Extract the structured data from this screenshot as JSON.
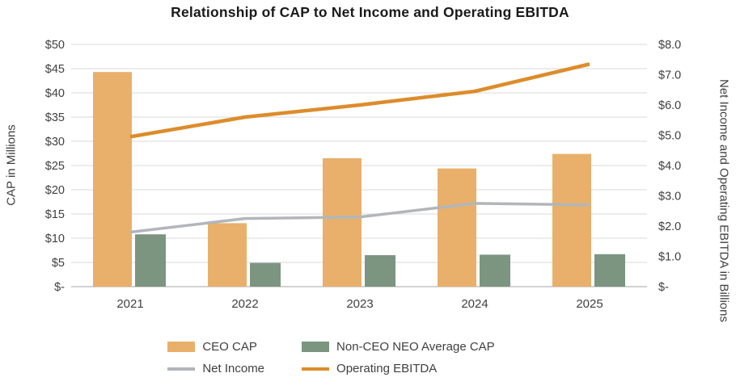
{
  "chart_data": {
    "type": "bar",
    "combo": "bar+line",
    "title": "Relationship of CAP to Net Income and Operating EBITDA",
    "categories": [
      "2021",
      "2022",
      "2023",
      "2024",
      "2025"
    ],
    "bar_series": [
      {
        "name": "CEO CAP",
        "axis": "left",
        "color": "#E8B06A",
        "values": [
          44.3,
          13.1,
          26.5,
          24.4,
          27.4
        ]
      },
      {
        "name": "Non-CEO NEO Average CAP",
        "axis": "left",
        "color": "#7C9580",
        "values": [
          10.8,
          4.9,
          6.5,
          6.6,
          6.7
        ]
      }
    ],
    "line_series": [
      {
        "name": "Net Income",
        "axis": "right",
        "color": "#B2B6BB",
        "values": [
          1.8,
          2.25,
          2.3,
          2.75,
          2.7
        ]
      },
      {
        "name": "Operating EBITDA",
        "axis": "right",
        "color": "#DD8C2B",
        "values": [
          4.95,
          5.6,
          6.0,
          6.45,
          7.35
        ]
      }
    ],
    "left_axis": {
      "label": "CAP in Millions",
      "min": 0,
      "max": 50,
      "step": 5,
      "tick_labels": [
        "$-",
        "$5",
        "$10",
        "$15",
        "$20",
        "$25",
        "$30",
        "$35",
        "$40",
        "$45",
        "$50"
      ]
    },
    "right_axis": {
      "label": "Net Income and Operating EBITDA in Billions",
      "min": 0,
      "max": 8,
      "step": 1,
      "tick_labels": [
        "$-",
        "$1.0",
        "$2.0",
        "$3.0",
        "$4.0",
        "$5.0",
        "$6.0",
        "$7.0",
        "$8.0"
      ]
    },
    "grid": true,
    "legend_position": "bottom"
  }
}
